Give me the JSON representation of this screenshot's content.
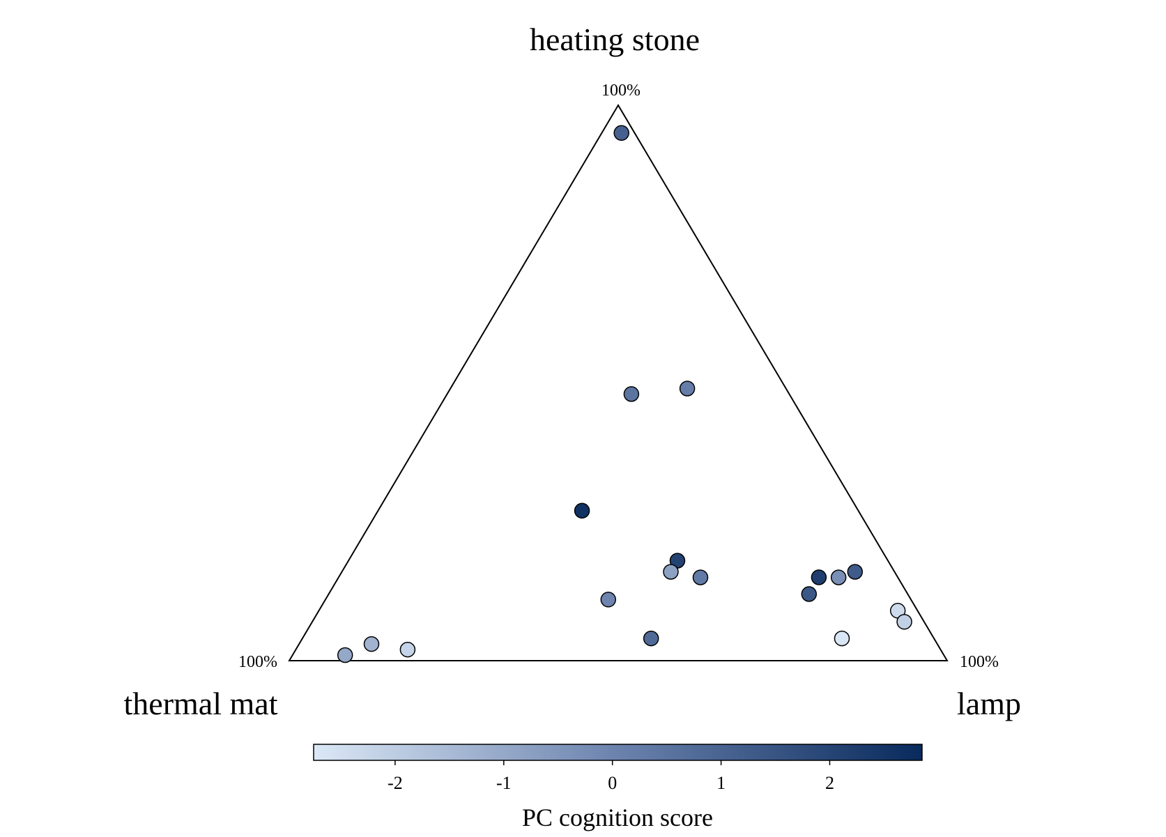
{
  "chart_data": {
    "type": "scatter",
    "subtype": "ternary",
    "axes": {
      "top": {
        "title": "heating stone",
        "apex_label": "100%"
      },
      "left": {
        "title": "thermal mat",
        "apex_label": "100%"
      },
      "right": {
        "title": "lamp",
        "apex_label": "100%"
      }
    },
    "points": [
      {
        "heating_stone": 0.95,
        "thermal_mat": 0.02,
        "lamp": 0.03,
        "score": 1.1
      },
      {
        "heating_stone": 0.48,
        "thermal_mat": 0.24,
        "lamp": 0.28,
        "score": 0.5
      },
      {
        "heating_stone": 0.49,
        "thermal_mat": 0.15,
        "lamp": 0.36,
        "score": 0.2
      },
      {
        "heating_stone": 0.27,
        "thermal_mat": 0.42,
        "lamp": 0.31,
        "score": 2.6
      },
      {
        "heating_stone": 0.18,
        "thermal_mat": 0.32,
        "lamp": 0.5,
        "score": 2.1
      },
      {
        "heating_stone": 0.16,
        "thermal_mat": 0.34,
        "lamp": 0.5,
        "score": -0.8
      },
      {
        "heating_stone": 0.15,
        "thermal_mat": 0.3,
        "lamp": 0.55,
        "score": 0.3
      },
      {
        "heating_stone": 0.15,
        "thermal_mat": 0.12,
        "lamp": 0.73,
        "score": 2.2
      },
      {
        "heating_stone": 0.15,
        "thermal_mat": 0.09,
        "lamp": 0.76,
        "score": -0.3
      },
      {
        "heating_stone": 0.16,
        "thermal_mat": 0.06,
        "lamp": 0.78,
        "score": 1.3
      },
      {
        "heating_stone": 0.12,
        "thermal_mat": 0.15,
        "lamp": 0.73,
        "score": 1.4
      },
      {
        "heating_stone": 0.11,
        "thermal_mat": 0.46,
        "lamp": 0.43,
        "score": 0.0
      },
      {
        "heating_stone": 0.04,
        "thermal_mat": 0.43,
        "lamp": 0.53,
        "score": 0.8
      },
      {
        "heating_stone": 0.09,
        "thermal_mat": 0.03,
        "lamp": 0.88,
        "score": -2.4
      },
      {
        "heating_stone": 0.07,
        "thermal_mat": 0.03,
        "lamp": 0.9,
        "score": -2.1
      },
      {
        "heating_stone": 0.04,
        "thermal_mat": 0.14,
        "lamp": 0.82,
        "score": -2.7
      },
      {
        "heating_stone": 0.03,
        "thermal_mat": 0.86,
        "lamp": 0.11,
        "score": -1.3
      },
      {
        "heating_stone": 0.02,
        "thermal_mat": 0.81,
        "lamp": 0.17,
        "score": -2.2
      },
      {
        "heating_stone": 0.01,
        "thermal_mat": 0.91,
        "lamp": 0.08,
        "score": -1.0
      }
    ],
    "colorbar": {
      "title": "PC cognition score",
      "range": [
        -2.75,
        2.85
      ],
      "ticks": [
        -2,
        -1,
        0,
        1,
        2
      ],
      "colors": {
        "low": "#dbe8f6",
        "mid": "#6b82ad",
        "high": "#082a5c"
      }
    }
  }
}
